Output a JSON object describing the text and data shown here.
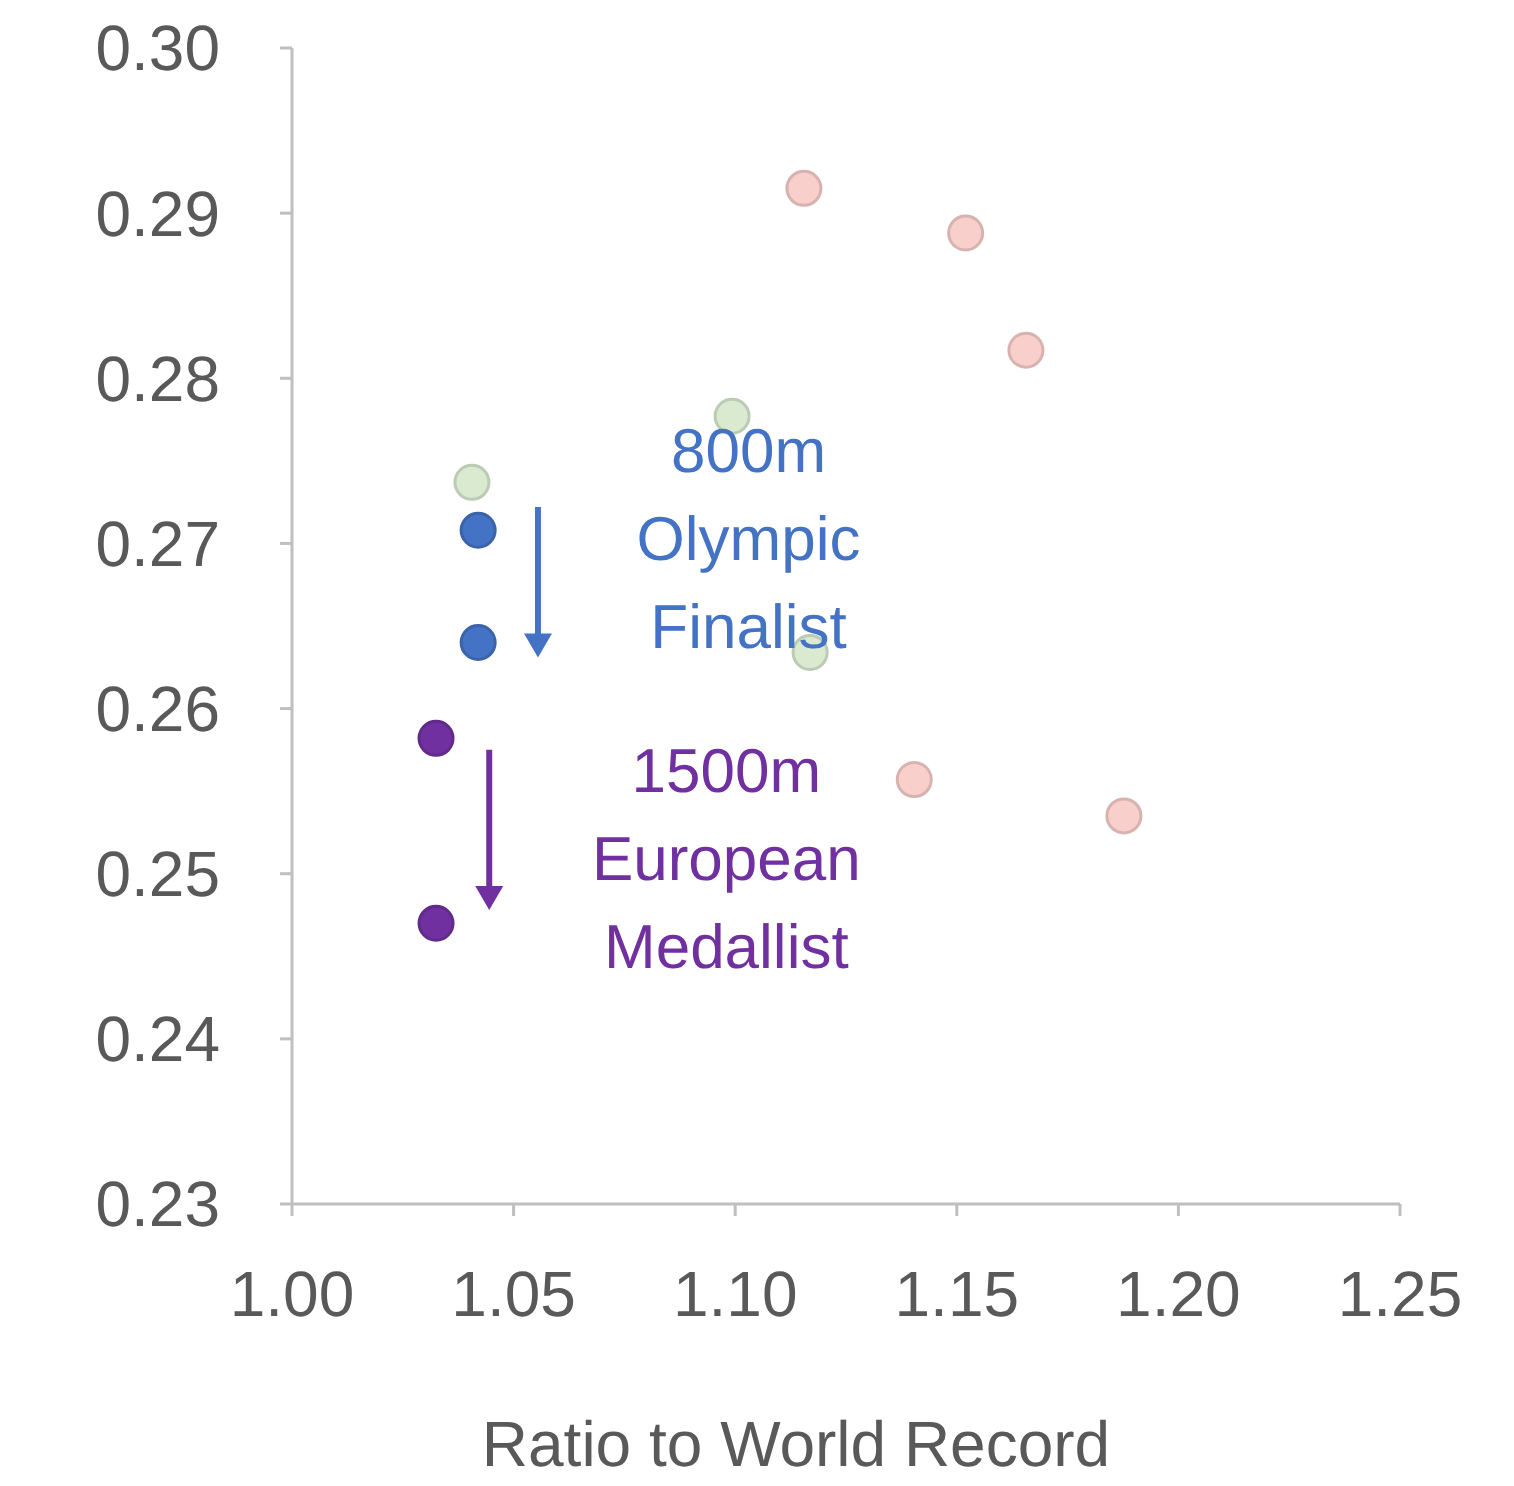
{
  "chart_data": {
    "type": "scatter",
    "xlabel": "Ratio to World Record",
    "xlim": [
      1.0,
      1.25
    ],
    "xticks": [
      {
        "value": 1.0,
        "label": "1.00"
      },
      {
        "value": 1.05,
        "label": "1.05"
      },
      {
        "value": 1.1,
        "label": "1.10"
      },
      {
        "value": 1.15,
        "label": "1.15"
      },
      {
        "value": 1.2,
        "label": "1.20"
      },
      {
        "value": 1.25,
        "label": "1.25"
      }
    ],
    "ylim": [
      0.23,
      0.3
    ],
    "yticks": [
      0.23,
      0.24,
      0.25,
      0.26,
      0.27,
      0.28,
      0.29,
      {
        "value": 0.3,
        "label": "0.30"
      }
    ],
    "grid": false,
    "marker": "circle",
    "series": [
      {
        "color": "#f8cfcb",
        "x": [
          1.1155,
          1.152,
          1.1656,
          1.1404,
          1.1877
        ],
        "values": [
          0.2915,
          0.2888,
          0.2817,
          0.2557,
          0.2535
        ]
      },
      {
        "color": "#d9ead0",
        "x": [
          1.0993,
          1.0406,
          1.1169
        ],
        "values": [
          0.2777,
          0.2737,
          0.2634
        ]
      },
      {
        "color": "#4472c4",
        "x": [
          1.042,
          1.042
        ],
        "values": [
          0.2708,
          0.264
        ]
      },
      {
        "color": "#7030a0",
        "x": [
          1.0325,
          1.0325
        ],
        "values": [
          0.2582,
          0.247
        ]
      }
    ],
    "annotations": [
      "800m Olympic Finalist",
      "1500m European Medallist"
    ]
  }
}
